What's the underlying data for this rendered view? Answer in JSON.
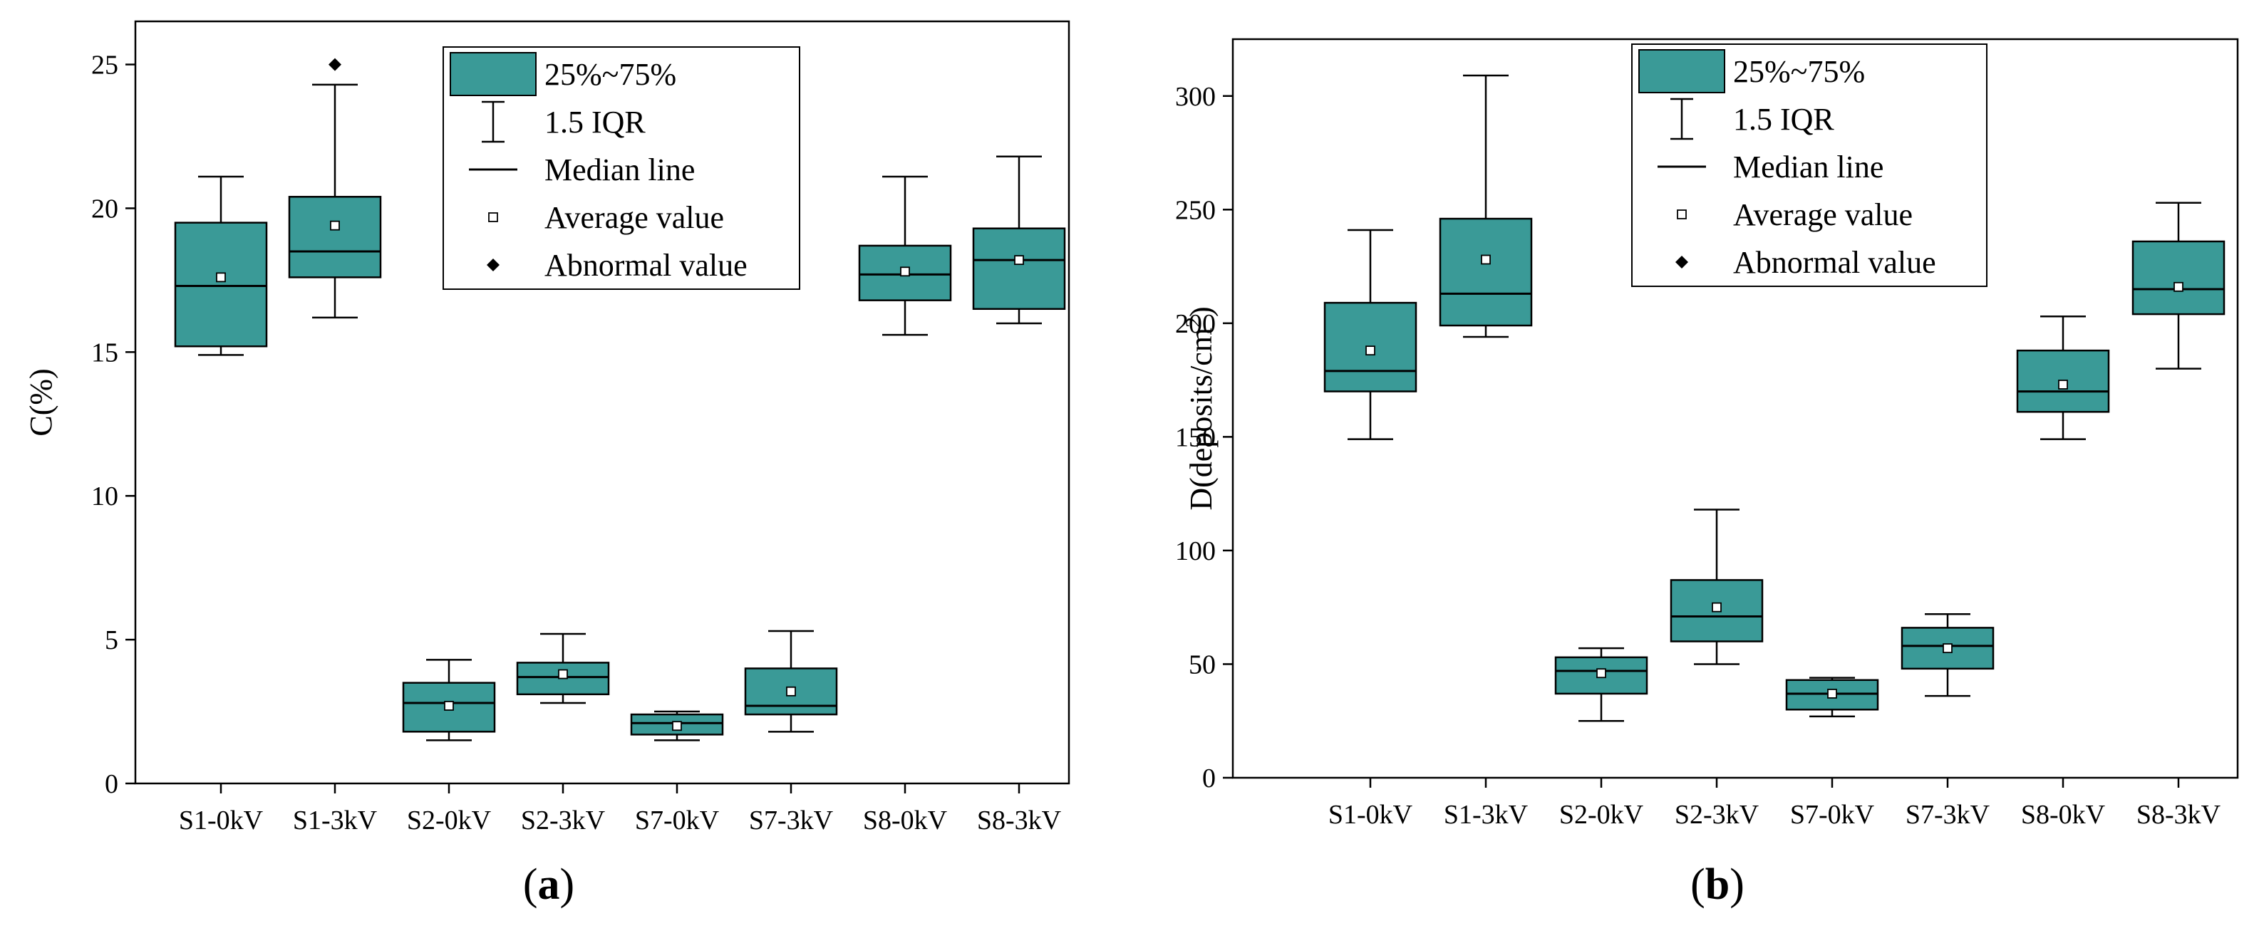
{
  "colors": {
    "box_fill": "#3a9a97",
    "stroke": "#000000",
    "background": "#ffffff"
  },
  "chart_data": [
    {
      "type": "box",
      "panel_label": "a",
      "ylabel": "C(%)",
      "ylim": [
        0,
        26.5
      ],
      "yticks": [
        0,
        5,
        10,
        15,
        20,
        25
      ],
      "categories": [
        "S1-0kV",
        "S1-3kV",
        "S2-0kV",
        "S2-3kV",
        "S7-0kV",
        "S7-3kV",
        "S8-0kV",
        "S8-3kV"
      ],
      "boxes": [
        {
          "category": "S1-0kV",
          "whisker_low": 14.9,
          "q1": 15.2,
          "median": 17.3,
          "q3": 19.5,
          "whisker_high": 21.1,
          "mean": 17.6,
          "outliers": []
        },
        {
          "category": "S1-3kV",
          "whisker_low": 16.2,
          "q1": 17.6,
          "median": 18.5,
          "q3": 20.4,
          "whisker_high": 24.3,
          "mean": 19.4,
          "outliers": [
            25.0
          ]
        },
        {
          "category": "S2-0kV",
          "whisker_low": 1.5,
          "q1": 1.8,
          "median": 2.8,
          "q3": 3.5,
          "whisker_high": 4.3,
          "mean": 2.7,
          "outliers": []
        },
        {
          "category": "S2-3kV",
          "whisker_low": 2.8,
          "q1": 3.1,
          "median": 3.7,
          "q3": 4.2,
          "whisker_high": 5.2,
          "mean": 3.8,
          "outliers": []
        },
        {
          "category": "S7-0kV",
          "whisker_low": 1.5,
          "q1": 1.7,
          "median": 2.1,
          "q3": 2.4,
          "whisker_high": 2.5,
          "mean": 2.0,
          "outliers": []
        },
        {
          "category": "S7-3kV",
          "whisker_low": 1.8,
          "q1": 2.4,
          "median": 2.7,
          "q3": 4.0,
          "whisker_high": 5.3,
          "mean": 3.2,
          "outliers": []
        },
        {
          "category": "S8-0kV",
          "whisker_low": 15.6,
          "q1": 16.8,
          "median": 17.7,
          "q3": 18.7,
          "whisker_high": 21.1,
          "mean": 17.8,
          "outliers": []
        },
        {
          "category": "S8-3kV",
          "whisker_low": 16.0,
          "q1": 16.5,
          "median": 18.2,
          "q3": 19.3,
          "whisker_high": 21.8,
          "mean": 18.2,
          "outliers": []
        }
      ],
      "legend": [
        "25%~75%",
        "1.5 IQR",
        "Median line",
        "Average value",
        "Abnormal value"
      ],
      "legend_position": "top-center"
    },
    {
      "type": "box",
      "panel_label": "b",
      "ylabel": "D(deposits/cm",
      "ylabel_sup": "2",
      "ylabel_end": ")",
      "ylim": [
        0,
        325
      ],
      "yticks": [
        0,
        50,
        100,
        150,
        200,
        250,
        300
      ],
      "categories": [
        "S1-0kV",
        "S1-3kV",
        "S2-0kV",
        "S2-3kV",
        "S7-0kV",
        "S7-3kV",
        "S8-0kV",
        "S8-3kV"
      ],
      "boxes": [
        {
          "category": "S1-0kV",
          "whisker_low": 149,
          "q1": 170,
          "median": 179,
          "q3": 209,
          "whisker_high": 241,
          "mean": 188,
          "outliers": []
        },
        {
          "category": "S1-3kV",
          "whisker_low": 194,
          "q1": 199,
          "median": 213,
          "q3": 246,
          "whisker_high": 309,
          "mean": 228,
          "outliers": []
        },
        {
          "category": "S2-0kV",
          "whisker_low": 25,
          "q1": 37,
          "median": 47,
          "q3": 53,
          "whisker_high": 57,
          "mean": 46,
          "outliers": []
        },
        {
          "category": "S2-3kV",
          "whisker_low": 50,
          "q1": 60,
          "median": 71,
          "q3": 87,
          "whisker_high": 118,
          "mean": 75,
          "outliers": []
        },
        {
          "category": "S7-0kV",
          "whisker_low": 27,
          "q1": 30,
          "median": 37,
          "q3": 43,
          "whisker_high": 44,
          "mean": 37,
          "outliers": []
        },
        {
          "category": "S7-3kV",
          "whisker_low": 36,
          "q1": 48,
          "median": 58,
          "q3": 66,
          "whisker_high": 72,
          "mean": 57,
          "outliers": []
        },
        {
          "category": "S8-0kV",
          "whisker_low": 149,
          "q1": 161,
          "median": 170,
          "q3": 188,
          "whisker_high": 203,
          "mean": 173,
          "outliers": []
        },
        {
          "category": "S8-3kV",
          "whisker_low": 180,
          "q1": 204,
          "median": 215,
          "q3": 236,
          "whisker_high": 253,
          "mean": 216,
          "outliers": []
        }
      ],
      "legend": [
        "25%~75%",
        "1.5 IQR",
        "Median line",
        "Average value",
        "Abnormal value"
      ],
      "legend_position": "top-center"
    }
  ]
}
